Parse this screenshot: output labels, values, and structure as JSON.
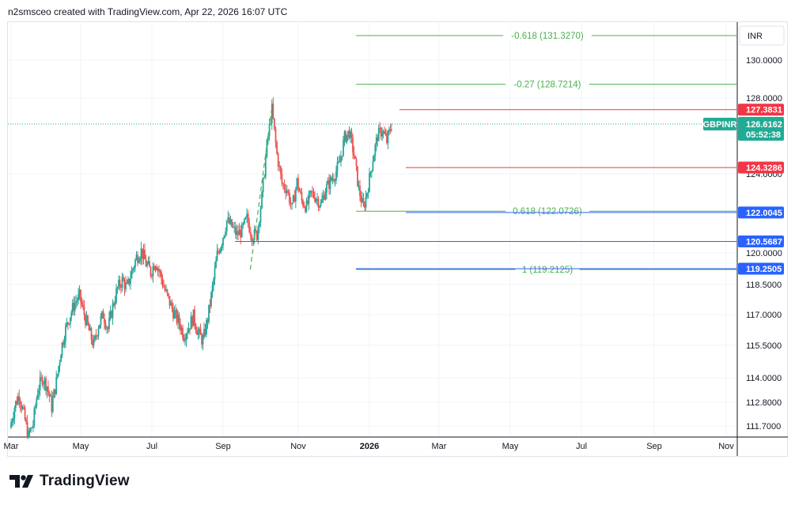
{
  "header": {
    "text": "n2smsceo created with TradingView.com, Apr 22, 2026 16:07 UTC"
  },
  "footer": {
    "brand": "TradingView"
  },
  "colors": {
    "up": "#26a69a",
    "down": "#ef5350",
    "fib": "#4caf50",
    "resistance": "#f23645",
    "support": "#2962ff",
    "grid": "#f0f3fa",
    "last": "#22ab94"
  },
  "chart_data": {
    "type": "candlestick",
    "symbol": "GBPINR",
    "currency": "INR",
    "last_price": "126.6162",
    "countdown": "05:52:38",
    "y_ticks": [
      "130.0000",
      "128.0000",
      "124.0000",
      "120.0000",
      "118.5000",
      "117.0000",
      "115.5000",
      "114.0000",
      "112.8000",
      "111.7000"
    ],
    "y_tick_values": [
      130.0,
      128.0,
      124.0,
      120.0,
      118.5,
      117.0,
      115.5,
      114.0,
      112.8,
      111.7
    ],
    "x_ticks": [
      "Mar",
      "May",
      "Jul",
      "Sep",
      "Nov",
      "2026",
      "Mar",
      "May",
      "Jul",
      "Sep",
      "Nov"
    ],
    "price_tags": [
      {
        "label": "127.3831",
        "value": 127.3831,
        "color": "#f23645"
      },
      {
        "label": "124.3286",
        "value": 124.3286,
        "color": "#f23645"
      },
      {
        "label": "122.0045",
        "value": 122.0045,
        "color": "#2962ff"
      },
      {
        "label": "120.5687",
        "value": 120.5687,
        "color": "#2962ff"
      },
      {
        "label": "119.2505",
        "value": 119.2505,
        "color": "#2962ff"
      }
    ],
    "fib_levels": [
      {
        "label": "-0.618 (131.3270)",
        "value": 131.327
      },
      {
        "label": "-0.27 (128.7214)",
        "value": 128.7214
      },
      {
        "label": "0.618 (122.0726)",
        "value": 122.0726
      },
      {
        "label": "1 (119.2125)",
        "value": 119.2125
      }
    ],
    "price_path": [
      [
        0,
        111.6
      ],
      [
        4,
        112.6
      ],
      [
        8,
        113.2
      ],
      [
        12,
        112.2
      ],
      [
        16,
        111.2
      ],
      [
        20,
        111.8
      ],
      [
        24,
        113.4
      ],
      [
        28,
        114.0
      ],
      [
        32,
        113.6
      ],
      [
        36,
        112.6
      ],
      [
        40,
        113.8
      ],
      [
        44,
        115.3
      ],
      [
        48,
        116.3
      ],
      [
        52,
        117.0
      ],
      [
        56,
        117.6
      ],
      [
        60,
        117.9
      ],
      [
        64,
        117.0
      ],
      [
        68,
        116.2
      ],
      [
        72,
        115.5
      ],
      [
        76,
        116.5
      ],
      [
        80,
        117.0
      ],
      [
        84,
        116.3
      ],
      [
        88,
        117.4
      ],
      [
        92,
        118.3
      ],
      [
        96,
        118.7
      ],
      [
        100,
        118.3
      ],
      [
        104,
        119.1
      ],
      [
        108,
        119.8
      ],
      [
        112,
        120.1
      ],
      [
        116,
        119.5
      ],
      [
        120,
        119.1
      ],
      [
        124,
        119.6
      ],
      [
        128,
        119.0
      ],
      [
        132,
        118.2
      ],
      [
        136,
        117.6
      ],
      [
        140,
        117.0
      ],
      [
        144,
        116.6
      ],
      [
        148,
        116.0
      ],
      [
        152,
        116.4
      ],
      [
        156,
        116.9
      ],
      [
        160,
        116.1
      ],
      [
        164,
        115.7
      ],
      [
        168,
        116.8
      ],
      [
        172,
        118.3
      ],
      [
        176,
        119.9
      ],
      [
        180,
        120.6
      ],
      [
        184,
        121.6
      ],
      [
        188,
        121.3
      ],
      [
        192,
        120.9
      ],
      [
        196,
        121.1
      ],
      [
        200,
        121.7
      ],
      [
        204,
        120.9
      ],
      [
        208,
        120.9
      ],
      [
        212,
        122.8
      ],
      [
        216,
        125.5
      ],
      [
        220,
        127.4
      ],
      [
        224,
        125.0
      ],
      [
        228,
        123.5
      ],
      [
        232,
        123.2
      ],
      [
        236,
        122.2
      ],
      [
        240,
        123.6
      ],
      [
        244,
        122.6
      ],
      [
        248,
        122.3
      ],
      [
        252,
        123.0
      ],
      [
        256,
        122.8
      ],
      [
        260,
        122.4
      ],
      [
        264,
        123.2
      ],
      [
        268,
        123.6
      ],
      [
        272,
        124.0
      ],
      [
        276,
        124.6
      ],
      [
        280,
        125.9
      ],
      [
        284,
        126.2
      ],
      [
        288,
        125.0
      ],
      [
        292,
        123.2
      ],
      [
        296,
        122.2
      ],
      [
        300,
        123.4
      ],
      [
        304,
        124.8
      ],
      [
        308,
        126.0
      ],
      [
        312,
        126.3
      ],
      [
        316,
        125.7
      ],
      [
        320,
        126.6
      ]
    ]
  }
}
